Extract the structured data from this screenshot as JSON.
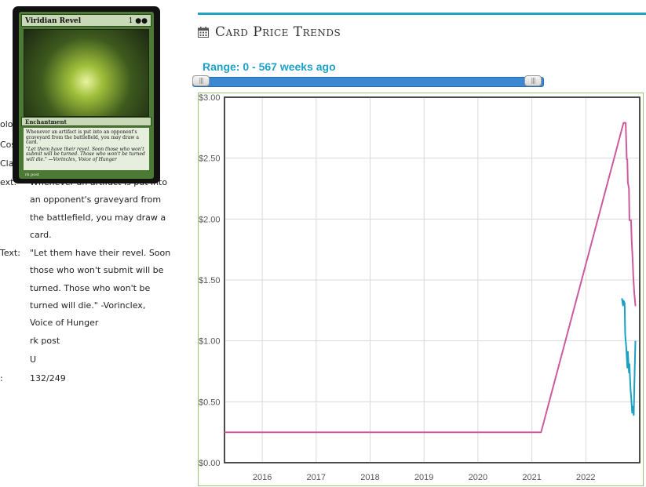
{
  "card_details": {
    "rows": [
      {
        "label": "olo",
        "lines": []
      },
      {
        "label": "Cos",
        "lines": []
      },
      {
        "label": "Cla",
        "lines": []
      },
      {
        "label": "ext:",
        "lines": [
          "Whenever an artifact is put into",
          "an opponent's graveyard from",
          "the battlefield, you may draw a",
          "card."
        ]
      },
      {
        "label": "Text:",
        "lines": [
          "\"Let them have their revel. Soon",
          "those who won't submit will be",
          "turned. Those who won't be",
          "turned will die.\" -Vorinclex,",
          "Voice of Hunger"
        ]
      },
      {
        "label": "",
        "lines": [
          "rk post"
        ]
      },
      {
        "label": "",
        "lines": [
          "U"
        ]
      },
      {
        "label": ":",
        "lines": [
          "132/249"
        ]
      }
    ]
  },
  "card_image": {
    "name": "Viridian Revel",
    "cost": "1 ●●",
    "type_line": "Enchantment",
    "rules_text": "Whenever an artifact is put into an opponent's graveyard from the battlefield, you may draw a card.",
    "flavor_text": "\"Let them have their revel. Soon those who won't submit will be turned. Those who won't be turned will die.\" —Vorinclex, Voice of Hunger",
    "artist": "rk post"
  },
  "panel": {
    "title": "Card Price Trends",
    "range_label": "Range: 0 - 567 weeks ago",
    "accent_color": "#1fa6c4"
  },
  "chart_data": {
    "type": "line",
    "title": "",
    "xlabel": "",
    "ylabel": "",
    "x_ticks": [
      "2016",
      "2017",
      "2018",
      "2019",
      "2020",
      "2021",
      "2022"
    ],
    "y_ticks": [
      "$0.00",
      "$0.50",
      "$1.00",
      "$1.50",
      "$2.00",
      "$2.50",
      "$3.00"
    ],
    "xlim": [
      2015.3,
      2023.0
    ],
    "ylim": [
      0,
      3
    ],
    "grid": true,
    "series": [
      {
        "color": "#cc5a9d",
        "x": [
          2015.3,
          2021.17,
          2022.7,
          2022.73,
          2022.74,
          2022.76,
          2022.77,
          2022.78,
          2022.8,
          2022.81,
          2022.82,
          2022.84,
          2022.85,
          2022.87,
          2022.88,
          2022.9,
          2022.92,
          2022.93
        ],
        "y": [
          0.25,
          0.25,
          2.79,
          2.79,
          2.79,
          2.49,
          2.49,
          2.3,
          2.25,
          1.99,
          1.99,
          1.99,
          1.83,
          1.65,
          1.53,
          1.39,
          1.29,
          1.29
        ]
      },
      {
        "color": "#1ba1c4",
        "x": [
          2022.67,
          2022.69,
          2022.7,
          2022.72,
          2022.73,
          2022.75,
          2022.77,
          2022.78,
          2022.8,
          2022.81,
          2022.83,
          2022.84,
          2022.86,
          2022.87,
          2022.89,
          2022.9,
          2022.92
        ],
        "y": [
          1.35,
          1.29,
          1.33,
          1.31,
          1.05,
          0.95,
          0.78,
          0.91,
          0.74,
          0.81,
          0.6,
          0.55,
          0.41,
          0.46,
          0.39,
          0.62,
          1.0
        ]
      }
    ]
  }
}
